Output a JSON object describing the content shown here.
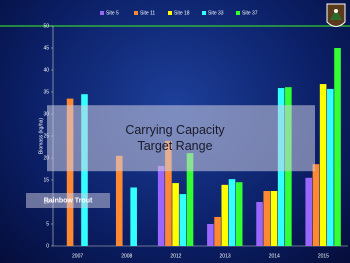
{
  "chart_data": {
    "type": "bar",
    "categories": [
      "2007",
      "2008",
      "2012",
      "2013",
      "2014",
      "2015"
    ],
    "series": [
      {
        "name": "Site 5",
        "color": "#9966ff",
        "values": [
          null,
          null,
          18.2,
          5,
          10,
          15.5
        ]
      },
      {
        "name": "Site 11",
        "color": "#ff8833",
        "values": [
          33.5,
          20.5,
          23.9,
          6.6,
          12.5,
          18.6
        ]
      },
      {
        "name": "Site 18",
        "color": "#ffff00",
        "values": [
          null,
          null,
          14.3,
          13.9,
          12.5,
          36.8
        ]
      },
      {
        "name": "Site 33",
        "color": "#33ffff",
        "values": [
          34.5,
          13.3,
          11.8,
          15.2,
          35.9,
          35.7
        ]
      },
      {
        "name": "Site 37",
        "color": "#33ff33",
        "values": [
          null,
          null,
          21.1,
          14.5,
          36.1,
          45
        ]
      }
    ],
    "y_label": "Biomass (kg/ha)",
    "ylim": [
      0,
      50
    ],
    "yticks": [
      0,
      5,
      10,
      15,
      20,
      25,
      30,
      35,
      40,
      45,
      50
    ],
    "band": {
      "label": "Carrying Capacity Target Range",
      "range": [
        17,
        32
      ]
    },
    "annotation": "Rainbow Trout",
    "legend": "top"
  }
}
